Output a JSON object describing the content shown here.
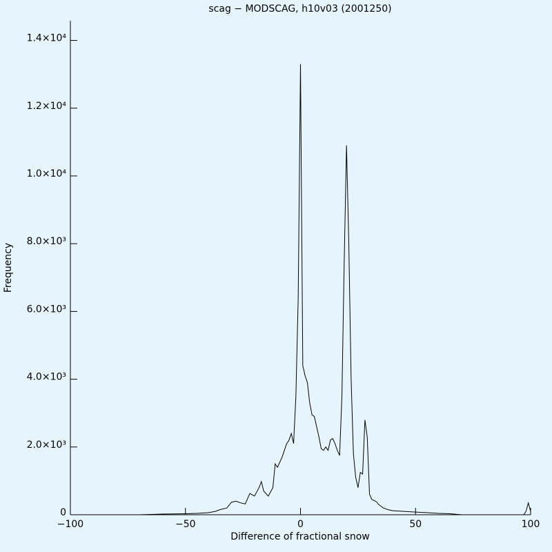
{
  "chart_data": {
    "type": "line",
    "title": "scag − MODSCAG, h10v03 (2001250)",
    "x_label": "Difference of fractional snow",
    "y_label": "Frequency",
    "x": [
      -100,
      -70,
      -60,
      -50,
      -45,
      -40,
      -37,
      -35,
      -32,
      -30,
      -28,
      -26,
      -24,
      -22,
      -20,
      -18,
      -17,
      -16,
      -14,
      -12,
      -11,
      -10,
      -8,
      -6,
      -5,
      -4,
      -3,
      -2,
      -1,
      0,
      1,
      2,
      3,
      4,
      5,
      6,
      7,
      8,
      9,
      10,
      11,
      12,
      13,
      14,
      15,
      16,
      17,
      18,
      19,
      20,
      21,
      22,
      23,
      24,
      25,
      26,
      27,
      28,
      29,
      30,
      31,
      32,
      33,
      34,
      35,
      36,
      38,
      40,
      45,
      50,
      55,
      60,
      65,
      70,
      97,
      98,
      99,
      100
    ],
    "values": [
      0,
      0,
      20,
      30,
      40,
      60,
      100,
      150,
      200,
      370,
      400,
      350,
      320,
      630,
      550,
      800,
      980,
      700,
      550,
      800,
      1500,
      1400,
      1700,
      2100,
      2200,
      2400,
      2100,
      3500,
      6400,
      13300,
      4400,
      4100,
      3900,
      3300,
      2950,
      2900,
      2600,
      2300,
      1950,
      1900,
      2000,
      1900,
      2200,
      2250,
      2100,
      1900,
      1750,
      3500,
      7500,
      10900,
      8000,
      4000,
      1800,
      1100,
      800,
      1250,
      1200,
      2800,
      2300,
      600,
      450,
      420,
      380,
      300,
      250,
      200,
      150,
      120,
      100,
      80,
      60,
      40,
      30,
      0,
      0,
      100,
      350,
      100
    ],
    "color": "#000000",
    "xlim": [
      -100,
      100
    ],
    "xticks": [
      {
        "value": -100,
        "label": "−100"
      },
      {
        "value": -50,
        "label": "−50"
      },
      0,
      50,
      100
    ],
    "ylim": [
      0,
      14500
    ],
    "yticks": [
      0,
      {
        "value": 2000,
        "label": "2.0×10³"
      },
      {
        "value": 4000,
        "label": "4.0×10³"
      },
      {
        "value": 6000,
        "label": "6.0×10³"
      },
      {
        "value": 8000,
        "label": "8.0×10³"
      },
      {
        "value": 10000,
        "label": "1.0×10⁴"
      },
      {
        "value": 12000,
        "label": "1.2×10⁴"
      },
      {
        "value": 14000,
        "label": "1.4×10⁴"
      }
    ]
  }
}
